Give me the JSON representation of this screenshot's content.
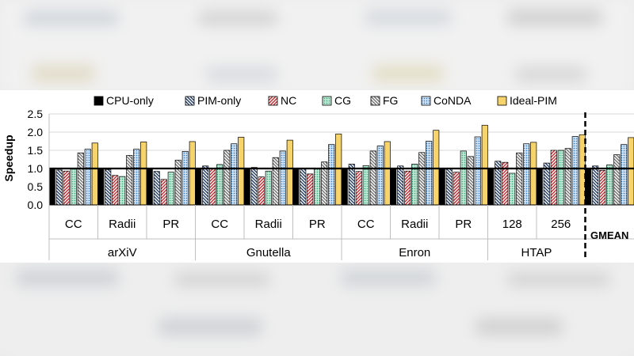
{
  "chart_data": {
    "type": "bar",
    "ylabel": "Speedup",
    "ylim": [
      0,
      2.5
    ],
    "yticks": [
      "0.0",
      "0.5",
      "1.0",
      "1.5",
      "2.0",
      "2.5"
    ],
    "reference_line": 1.0,
    "groups": [
      {
        "label": "arXiV",
        "categories": [
          "CC",
          "Radii",
          "PR"
        ]
      },
      {
        "label": "Gnutella",
        "categories": [
          "CC",
          "Radii",
          "PR"
        ]
      },
      {
        "label": "Enron",
        "categories": [
          "CC",
          "Radii",
          "PR"
        ]
      },
      {
        "label": "HTAP",
        "categories": [
          "128",
          "256"
        ]
      },
      {
        "label": "GMEAN",
        "categories": [
          ""
        ]
      }
    ],
    "series": [
      {
        "name": "CPU-only",
        "color": "#000000",
        "pattern": "solid",
        "values": [
          1.0,
          1.0,
          1.0,
          1.0,
          1.0,
          1.0,
          1.0,
          1.0,
          1.0,
          1.0,
          1.0,
          1.0
        ]
      },
      {
        "name": "PIM-only",
        "color": "#1f3864",
        "pattern": "back-diagonal",
        "values": [
          0.96,
          0.97,
          0.92,
          1.07,
          1.03,
          1.0,
          1.12,
          1.07,
          1.0,
          1.2,
          1.15,
          1.07
        ]
      },
      {
        "name": "NC",
        "color": "#c0272d",
        "pattern": "diagonal",
        "values": [
          0.93,
          0.81,
          0.7,
          1.0,
          0.77,
          0.85,
          0.92,
          0.93,
          0.9,
          1.17,
          1.5,
          0.95
        ]
      },
      {
        "name": "CG",
        "color": "#35a77a",
        "pattern": "dots",
        "values": [
          1.0,
          0.78,
          0.9,
          1.11,
          0.93,
          1.0,
          1.08,
          1.12,
          1.48,
          0.87,
          1.5,
          1.1
        ]
      },
      {
        "name": "FG",
        "color": "#707070",
        "pattern": "back-diagonal",
        "values": [
          1.43,
          1.36,
          1.23,
          1.5,
          1.3,
          1.18,
          1.48,
          1.44,
          1.33,
          1.43,
          1.55,
          1.38
        ]
      },
      {
        "name": "CoNDA",
        "color": "#5b9bd5",
        "pattern": "dots",
        "values": [
          1.53,
          1.53,
          1.47,
          1.68,
          1.48,
          1.66,
          1.62,
          1.75,
          1.87,
          1.68,
          1.88,
          1.66
        ]
      },
      {
        "name": "Ideal-PIM",
        "color": "#f7d36b",
        "pattern": "solid",
        "values": [
          1.7,
          1.73,
          1.74,
          1.86,
          1.78,
          1.95,
          1.74,
          2.05,
          2.19,
          1.72,
          1.93,
          1.85
        ]
      }
    ]
  }
}
